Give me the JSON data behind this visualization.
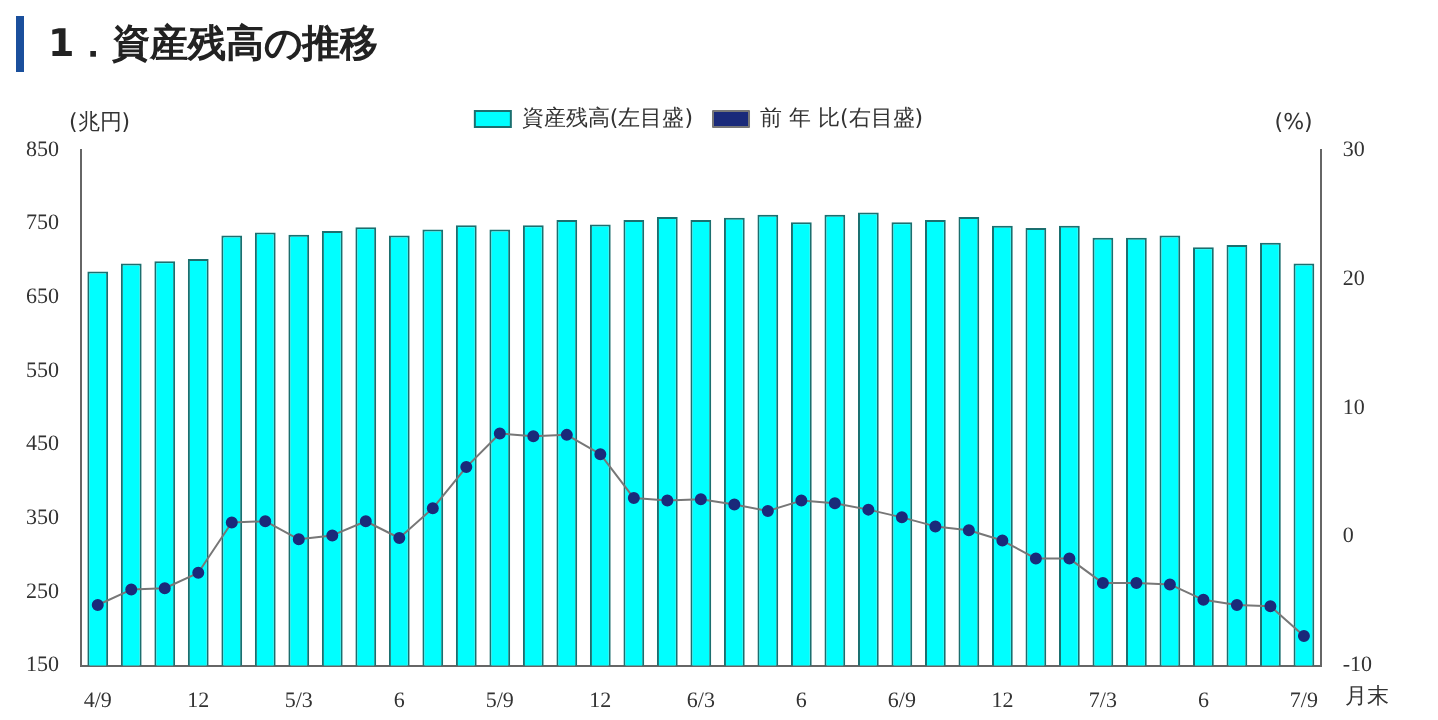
{
  "chart_data": {
    "type": "bar",
    "title": "1．資産残高の推移",
    "ylabel": "(兆円)",
    "y2label": "(%)",
    "xlabel": "月末",
    "categories": [
      "4/9",
      null,
      null,
      "12",
      null,
      null,
      "5/3",
      null,
      null,
      "6",
      null,
      null,
      "5/9",
      null,
      null,
      "12",
      null,
      null,
      "6/3",
      null,
      null,
      "6",
      null,
      null,
      "6/9",
      null,
      null,
      "12",
      null,
      null,
      "7/3",
      null,
      null,
      "6",
      null,
      null,
      "7/9"
    ],
    "series": [
      {
        "name": "資産残高(左目盛)",
        "color": "#00ffff",
        "values": [
          685,
          696,
          699,
          702,
          734,
          738,
          735,
          740,
          745,
          734,
          742,
          748,
          742,
          748,
          755,
          749,
          755,
          759,
          755,
          758,
          762,
          752,
          762,
          765,
          752,
          755,
          759,
          747,
          744,
          747,
          731,
          731,
          734,
          718,
          721,
          724,
          696
        ]
      },
      {
        "name": "前 年 比(右目盛)",
        "type": "line",
        "axis": "y2",
        "color": "#1a2a7a",
        "marker": "circle",
        "values": [
          -5.3,
          -4.1,
          -4.0,
          -2.8,
          1.1,
          1.2,
          -0.2,
          0.1,
          1.2,
          -0.1,
          2.2,
          5.4,
          8.0,
          7.8,
          7.9,
          6.4,
          3.0,
          2.8,
          2.9,
          2.5,
          2.0,
          2.8,
          2.6,
          2.1,
          1.5,
          0.8,
          0.5,
          -0.3,
          -1.7,
          -1.7,
          -3.6,
          -3.6,
          -3.7,
          -4.9,
          -5.3,
          -5.4,
          -7.7
        ]
      }
    ],
    "ylim": [
      150,
      850
    ],
    "yticks": [
      150,
      250,
      350,
      450,
      550,
      650,
      750,
      850
    ],
    "y2lim": [
      -10,
      30
    ],
    "y2ticks": [
      -10,
      0,
      10,
      20,
      30
    ],
    "grid": false,
    "legend": "top"
  }
}
